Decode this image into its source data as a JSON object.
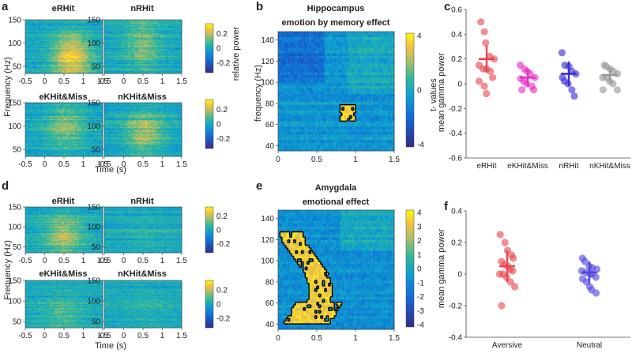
{
  "figure": {
    "panel_letters": [
      "a",
      "b",
      "c",
      "d",
      "e",
      "f"
    ],
    "colors": {
      "eRHit": "#e8474f",
      "eKHit_Miss": "#e62ec8",
      "nRHit": "#3a2bd6",
      "nKHit_Miss": "#9a9a9a",
      "aversive": "#e8474f",
      "neutral": "#4f46e0",
      "contour": "#000000"
    }
  },
  "chart_data": [
    {
      "panel": "a",
      "type": "heatmap",
      "subplots": [
        "eRHit",
        "nRHit",
        "eKHit&Miss",
        "nKHit&Miss"
      ],
      "xlabel": "Time (s)",
      "ylabel": "Frequency (Hz)",
      "xticks": [
        "-0.5",
        "0",
        "0.5",
        "1",
        "1.5"
      ],
      "yticks": [
        "50",
        "100",
        "150"
      ],
      "colorbar_label": "relative power",
      "colorbar_ticks": [
        "0.2",
        "0",
        "-0.2"
      ],
      "hotspots": [
        {
          "cx": 0.7,
          "cy": 70,
          "sx": 0.35,
          "sy": 35,
          "amp": 0.24
        },
        {
          "cx": 0.5,
          "cy": 95,
          "sx": 0.3,
          "sy": 40,
          "amp": 0.12
        },
        {
          "cx": 0.55,
          "cy": 100,
          "sx": 0.35,
          "sy": 35,
          "amp": 0.13
        },
        {
          "cx": 0.55,
          "cy": 85,
          "sx": 0.35,
          "sy": 35,
          "amp": 0.16
        }
      ]
    },
    {
      "panel": "b",
      "type": "heatmap",
      "title": "Hippocampus",
      "subtitle": "emotion by memory effect",
      "xlabel": "",
      "ylabel": "frequency (Hz)",
      "xticks": [
        "0",
        "0.5",
        "1",
        "1.5"
      ],
      "yticks": [
        "140",
        "120",
        "100",
        "80",
        "60",
        "40"
      ],
      "colorbar_label": "t- values",
      "colorbar_ticks": [
        "4",
        "0",
        "-4"
      ],
      "significant_cluster": {
        "time_range": [
          0.8,
          1.0
        ],
        "freq_range": [
          62,
          78
        ]
      }
    },
    {
      "panel": "c",
      "type": "scatter",
      "ylabel": "mean gamma power",
      "ylim": [
        -0.6,
        0.6
      ],
      "yticks": [
        "0.6",
        "0.4",
        "0.2",
        "0",
        "-0.2",
        "-0.4",
        "-0.6"
      ],
      "categories": [
        "eRHit",
        "eKHit&Miss",
        "nRHit",
        "nKHit&Miss"
      ],
      "series": [
        {
          "name": "eRHit",
          "mean": 0.2,
          "sd": 0.11,
          "values": [
            0.5,
            0.42,
            0.33,
            0.22,
            0.2,
            0.15,
            0.12,
            0.12,
            0.1,
            0.05,
            0.02,
            -0.02,
            -0.08
          ]
        },
        {
          "name": "eKHit&Miss",
          "mean": 0.05,
          "sd": 0.07,
          "values": [
            0.15,
            0.12,
            0.1,
            0.08,
            0.05,
            0.04,
            0.02,
            0.0,
            -0.02,
            -0.05,
            -0.05
          ]
        },
        {
          "name": "nRHit",
          "mean": 0.08,
          "sd": 0.1,
          "values": [
            0.25,
            0.15,
            0.14,
            0.1,
            0.08,
            0.05,
            0.02,
            0.0,
            -0.05,
            -0.1
          ]
        },
        {
          "name": "nKHit&Miss",
          "mean": 0.07,
          "sd": 0.06,
          "values": [
            0.15,
            0.14,
            0.12,
            0.1,
            0.08,
            0.05,
            0.05,
            0.02,
            0.0,
            -0.05,
            -0.05
          ]
        }
      ]
    },
    {
      "panel": "d",
      "type": "heatmap",
      "subplots": [
        "eRHit",
        "nRHit",
        "eKHit&Miss",
        "nKHit&Miss"
      ],
      "xlabel": "Time (s)",
      "ylabel": "Frequency (Hz)",
      "xticks": [
        "-0.5",
        "0",
        "0.5",
        "1",
        "1.5"
      ],
      "yticks": [
        "50",
        "100",
        "150"
      ],
      "colorbar_ticks": [
        "0.2",
        "0",
        "-0.2"
      ],
      "hotspots": [
        {
          "cx": 0.5,
          "cy": 80,
          "sx": 0.35,
          "sy": 35,
          "amp": 0.16
        },
        {
          "cx": 0.6,
          "cy": 80,
          "sx": 0.35,
          "sy": 35,
          "amp": 0.03
        },
        {
          "cx": 0.45,
          "cy": 70,
          "sx": 0.35,
          "sy": 30,
          "amp": 0.08
        },
        {
          "cx": 0.6,
          "cy": 75,
          "sx": 0.35,
          "sy": 30,
          "amp": 0.03
        }
      ]
    },
    {
      "panel": "e",
      "type": "heatmap",
      "title": "Amygdala",
      "subtitle": "emotional effect",
      "xlabel": "",
      "ylabel": "",
      "xticks": [
        "0",
        "0.5",
        "1",
        "1.5"
      ],
      "yticks": [
        "140",
        "120",
        "100",
        "80",
        "60",
        "40"
      ],
      "colorbar_ticks": [
        "4",
        "3",
        "2",
        "1",
        "0",
        "-1",
        "-2",
        "-3",
        "-4"
      ],
      "significant_cluster": {
        "time_range": [
          0.05,
          0.75
        ],
        "freq_range": [
          40,
          128
        ]
      }
    },
    {
      "panel": "f",
      "type": "scatter",
      "ylabel": "mean gamma power",
      "ylim": [
        -0.4,
        0.4
      ],
      "yticks": [
        "0.4",
        "0.2",
        "0",
        "-0.2",
        "-0.4"
      ],
      "categories": [
        "Aversive",
        "Neutral"
      ],
      "series": [
        {
          "name": "Aversive",
          "mean": 0.05,
          "sd": 0.1,
          "values": [
            0.25,
            0.2,
            0.15,
            0.12,
            0.1,
            0.08,
            0.06,
            0.05,
            0.03,
            0.02,
            0.0,
            0.0,
            -0.02,
            -0.05,
            -0.08,
            -0.2
          ]
        },
        {
          "name": "Neutral",
          "mean": 0.01,
          "sd": 0.07,
          "values": [
            0.1,
            0.08,
            0.05,
            0.04,
            0.03,
            0.02,
            0.01,
            0.0,
            0.0,
            -0.02,
            -0.03,
            -0.05,
            -0.08,
            -0.1,
            -0.12
          ]
        }
      ]
    }
  ]
}
